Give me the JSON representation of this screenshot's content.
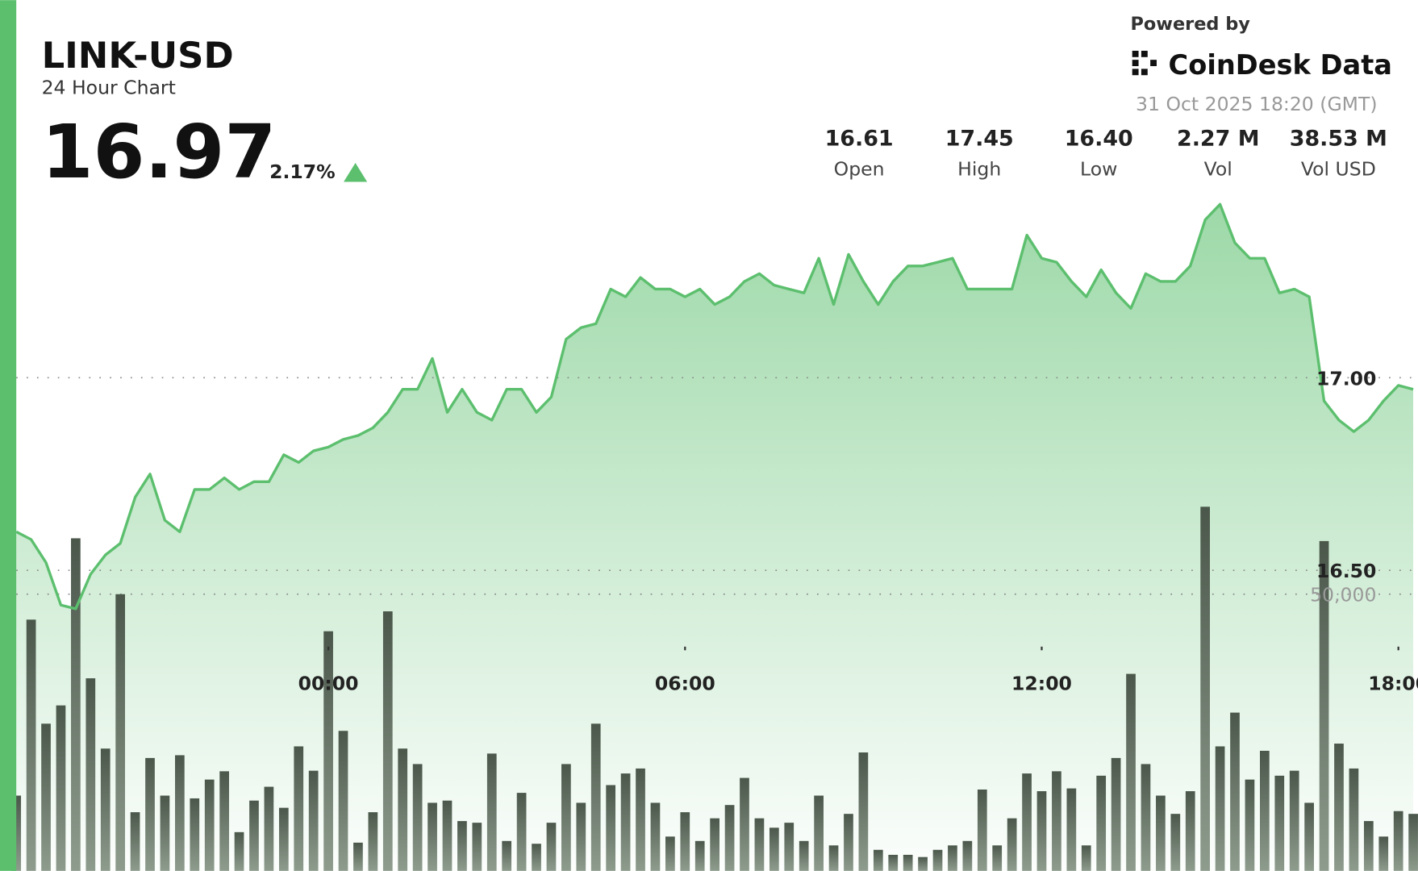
{
  "header": {
    "symbol": "LINK-USD",
    "period": "24 Hour Chart",
    "price": "16.97",
    "change": "2.17%",
    "powered_by": "Powered by",
    "brand": "CoinDesk Data",
    "timestamp": "31 Oct 2025 18:20 (GMT)",
    "stats": [
      {
        "value": "16.61",
        "label": "Open"
      },
      {
        "value": "17.45",
        "label": "High"
      },
      {
        "value": "16.40",
        "label": "Low"
      },
      {
        "value": "2.27 M",
        "label": "Vol"
      },
      {
        "value": "38.53 M",
        "label": "Vol USD"
      }
    ]
  },
  "chart_data": {
    "type": "line",
    "x": [
      -5.25,
      -5,
      -4.75,
      -4.5,
      -4.25,
      -4,
      -3.75,
      -3.5,
      -3.25,
      -3,
      -2.75,
      -2.5,
      -2.25,
      -2,
      -1.75,
      -1.5,
      -1.25,
      -1,
      -0.75,
      -0.5,
      -0.25,
      0,
      0.25,
      0.5,
      0.75,
      1,
      1.25,
      1.5,
      1.75,
      2,
      2.25,
      2.5,
      2.75,
      3,
      3.25,
      3.5,
      3.75,
      4,
      4.25,
      4.5,
      4.75,
      5,
      5.25,
      5.5,
      5.75,
      6,
      6.25,
      6.5,
      6.75,
      7,
      7.25,
      7.5,
      7.75,
      8,
      8.25,
      8.5,
      8.75,
      9,
      9.25,
      9.5,
      9.75,
      10,
      10.25,
      10.5,
      10.75,
      11,
      11.25,
      11.5,
      11.75,
      12,
      12.25,
      12.5,
      12.75,
      13,
      13.25,
      13.5,
      13.75,
      14,
      14.25,
      14.5,
      14.75,
      15,
      15.25,
      15.5,
      15.75,
      16,
      16.25,
      16.5,
      16.75,
      17,
      17.25,
      17.5,
      17.75,
      18,
      18.25
    ],
    "series": [
      {
        "color": "#5cbf6e",
        "values": [
          16.6,
          16.58,
          16.52,
          16.41,
          16.4,
          16.49,
          16.54,
          16.57,
          16.69,
          16.75,
          16.63,
          16.6,
          16.71,
          16.71,
          16.74,
          16.71,
          16.73,
          16.73,
          16.8,
          16.78,
          16.81,
          16.82,
          16.84,
          16.85,
          16.87,
          16.91,
          16.97,
          16.97,
          17.05,
          16.91,
          16.97,
          16.91,
          16.89,
          16.97,
          16.97,
          16.91,
          16.95,
          17.1,
          17.13,
          17.14,
          17.23,
          17.21,
          17.26,
          17.23,
          17.23,
          17.21,
          17.23,
          17.19,
          17.21,
          17.25,
          17.27,
          17.24,
          17.23,
          17.22,
          17.31,
          17.19,
          17.32,
          17.25,
          17.19,
          17.25,
          17.29,
          17.29,
          17.3,
          17.31,
          17.23,
          17.23,
          17.23,
          17.23,
          17.37,
          17.31,
          17.3,
          17.25,
          17.21,
          17.28,
          17.22,
          17.18,
          17.27,
          17.25,
          17.25,
          17.29,
          17.41,
          17.45,
          17.35,
          17.31,
          17.31,
          17.22,
          17.23,
          17.21,
          16.94,
          16.89,
          16.86,
          16.89,
          16.94,
          16.98,
          16.97
        ]
      },
      {
        "type": "bar",
        "axis": "y2",
        "color": "#5d6b5d",
        "values": [
          13600,
          45400,
          26600,
          29900,
          60100,
          34800,
          22100,
          50000,
          10600,
          20400,
          13600,
          20900,
          13100,
          16500,
          18000,
          7000,
          12700,
          15200,
          11400,
          22500,
          18100,
          43300,
          25300,
          5100,
          10600,
          46900,
          22100,
          19300,
          12300,
          12700,
          9000,
          8700,
          21200,
          5400,
          14100,
          4900,
          8700,
          19300,
          12300,
          26600,
          15500,
          17600,
          18500,
          12300,
          6200,
          10600,
          5400,
          9500,
          11900,
          16800,
          9500,
          7800,
          8700,
          5400,
          13600,
          4600,
          10300,
          21400,
          3800,
          2900,
          2900,
          2500,
          3800,
          4600,
          5400,
          14700,
          4600,
          9500,
          17600,
          14400,
          18000,
          14900,
          4600,
          17200,
          20400,
          35600,
          19300,
          13600,
          10300,
          14400,
          65800,
          22500,
          28600,
          16500,
          21700,
          17200,
          18100,
          12300,
          59600,
          23000,
          18500,
          9000,
          6200,
          10800,
          10300
        ]
      }
    ],
    "xlim": [
      -5.25,
      18.33
    ],
    "xticks": [
      {
        "value": 0,
        "label": "00:00"
      },
      {
        "value": 6,
        "label": "06:00"
      },
      {
        "value": 12,
        "label": "12:00"
      },
      {
        "value": 18,
        "label": "18:00"
      }
    ],
    "ylim": [
      15.72,
      17.98
    ],
    "yticks": [
      {
        "value": 16.5,
        "label": "16.50"
      },
      {
        "value": 17,
        "label": "17.00"
      }
    ],
    "y2lim": [
      0,
      157350
    ],
    "y2ticks": [
      {
        "value": 50000,
        "label": "50,000"
      }
    ],
    "grid": true
  }
}
